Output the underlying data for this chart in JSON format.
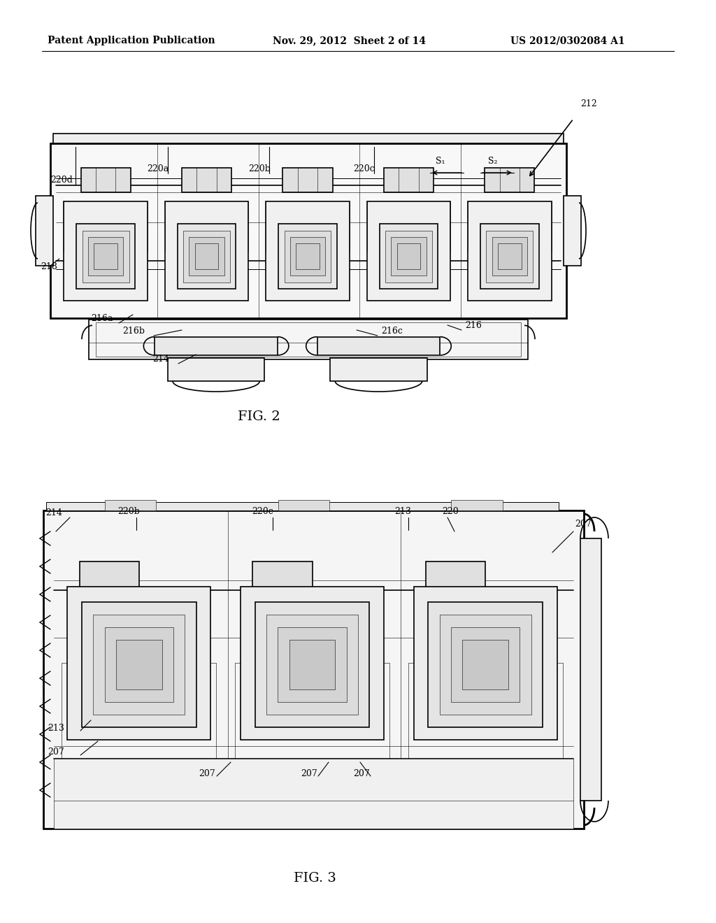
{
  "bg_color": "#ffffff",
  "header_left": "Patent Application Publication",
  "header_center": "Nov. 29, 2012  Sheet 2 of 14",
  "header_right": "US 2012/0302084 A1",
  "fig2_label": "FIG. 2",
  "fig3_label": "FIG. 3",
  "ref_fontsize": 9,
  "fig_label_fontsize": 14,
  "header_fontsize": 10,
  "line_color": "#000000",
  "gray_light": "#cccccc",
  "gray_mid": "#aaaaaa",
  "gray_dark": "#888888",
  "lw_heavy": 2.0,
  "lw_med": 1.2,
  "lw_light": 0.7,
  "lw_thin": 0.4
}
